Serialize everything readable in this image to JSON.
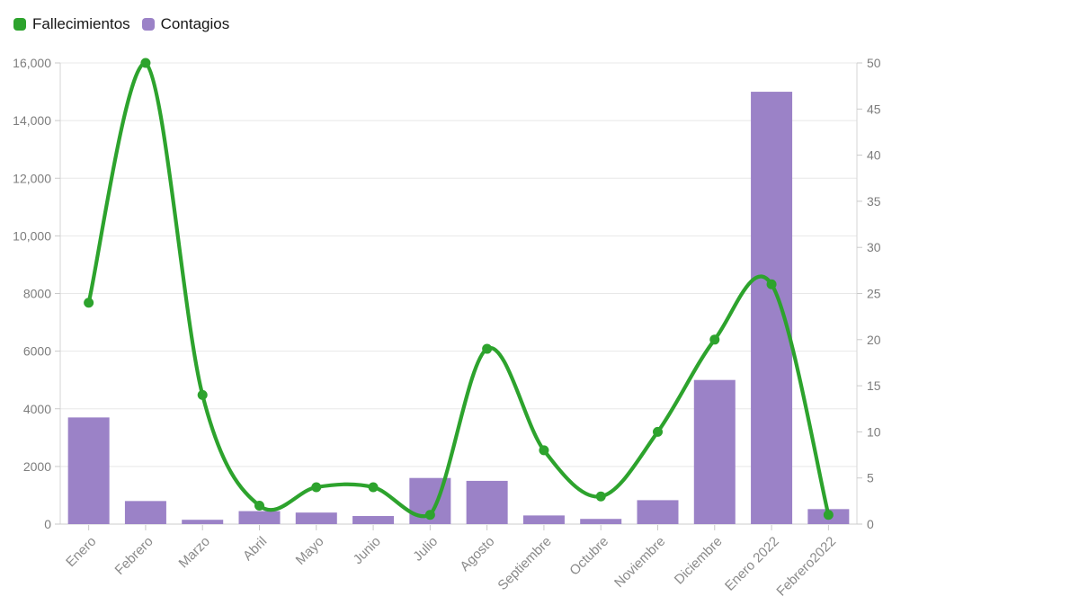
{
  "legend": {
    "items": [
      {
        "id": "fallecimientos",
        "label": "Fallecimientos",
        "color": "#2da32d"
      },
      {
        "id": "contagios",
        "label": "Contagios",
        "color": "#9b82c7"
      }
    ]
  },
  "chart_data": {
    "type": "bar+line",
    "categories": [
      "Enero",
      "Febrero",
      "Marzo",
      "Abril",
      "Mayo",
      "Junio",
      "Julio",
      "Agosto",
      "Septiembre",
      "Octubre",
      "Noviembre",
      "Diciembre",
      "Enero 2022",
      "Febrero2022"
    ],
    "series": [
      {
        "name": "Fallecimientos",
        "type": "line",
        "axis": "right",
        "color": "#2da32d",
        "values": [
          24,
          50,
          14,
          2,
          4,
          4,
          1,
          19,
          8,
          3,
          10,
          20,
          26,
          1
        ]
      },
      {
        "name": "Contagios",
        "type": "bar",
        "axis": "left",
        "color": "#9b82c7",
        "values": [
          3700,
          800,
          150,
          450,
          400,
          280,
          1600,
          1500,
          300,
          180,
          830,
          5000,
          15000,
          520
        ]
      }
    ],
    "left_axis": {
      "min": 0,
      "max": 16000,
      "step": 2000,
      "tick_labels": [
        "0",
        "2000",
        "4000",
        "6000",
        "8000",
        "10,000",
        "12,000",
        "14,000",
        "16,000"
      ]
    },
    "right_axis": {
      "min": 0,
      "max": 50,
      "step": 5,
      "tick_labels": [
        "0",
        "5",
        "10",
        "15",
        "20",
        "25",
        "30",
        "35",
        "40",
        "45",
        "50"
      ]
    },
    "grid": true,
    "legend_position": "top-left",
    "colors": {
      "gridline": "#e8e8e8",
      "axis_line": "#d6d6d6",
      "tick": "#c9c9c9",
      "y_label": "#7d7d7d",
      "x_label": "#8a8a8a"
    }
  }
}
